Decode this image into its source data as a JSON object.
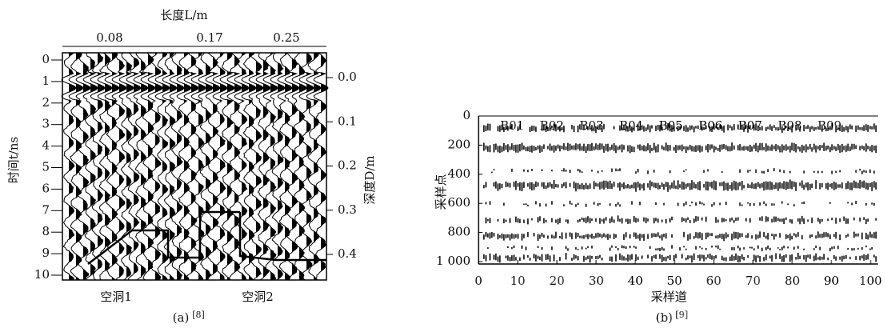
{
  "panel_a": {
    "x_axis_title": "长度L/m",
    "x_ticks": [
      "0.08",
      "0.17",
      "0.25"
    ],
    "y_axis_title": "时间t/ns",
    "y_ticks": [
      "0",
      "1",
      "2",
      "3",
      "4",
      "5",
      "6",
      "7",
      "8",
      "9",
      "10"
    ],
    "y2_axis_title": "深度D/m",
    "y2_ticks": [
      "0.0",
      "0.1",
      "0.2",
      "0.3",
      "0.4"
    ],
    "annotations": [
      "空洞1",
      "空洞2"
    ],
    "caption": "(a)",
    "caption_ref": "[8]"
  },
  "panel_b": {
    "trace_labels": [
      "B01",
      "B02",
      "B03",
      "B04",
      "B05",
      "B06",
      "B07",
      "B08",
      "B09"
    ],
    "x_ticks": [
      "0",
      "10",
      "20",
      "30",
      "40",
      "50",
      "60",
      "70",
      "80",
      "90",
      "100"
    ],
    "y_ticks": [
      "0",
      "200",
      "400",
      "600",
      "800",
      "1 000"
    ],
    "x_axis_title": "采样道",
    "y_axis_title": "采样点",
    "caption": "(b)",
    "caption_ref": "[9]"
  }
}
